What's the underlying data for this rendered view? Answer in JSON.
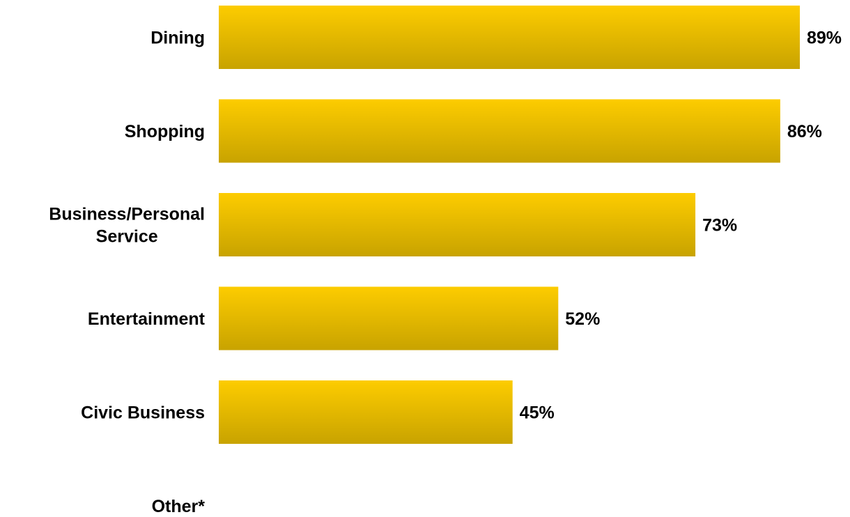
{
  "chart_data": {
    "type": "bar",
    "orientation": "horizontal",
    "categories": [
      [
        "Dining"
      ],
      [
        "Shopping"
      ],
      [
        "Business/Personal",
        "Service"
      ],
      [
        "Entertainment"
      ],
      [
        "Civic Business"
      ],
      [
        "Other*"
      ]
    ],
    "values": [
      89,
      86,
      73,
      52,
      45,
      null
    ],
    "value_labels": [
      "89%",
      "86%",
      "73%",
      "52%",
      "45%",
      ""
    ],
    "xlim": [
      0,
      100
    ],
    "title": "",
    "xlabel": "",
    "ylabel": "",
    "grid": false,
    "legend": "none",
    "colors": {
      "bar_top": "#fdcc00",
      "bar_bottom": "#c8a300"
    }
  }
}
